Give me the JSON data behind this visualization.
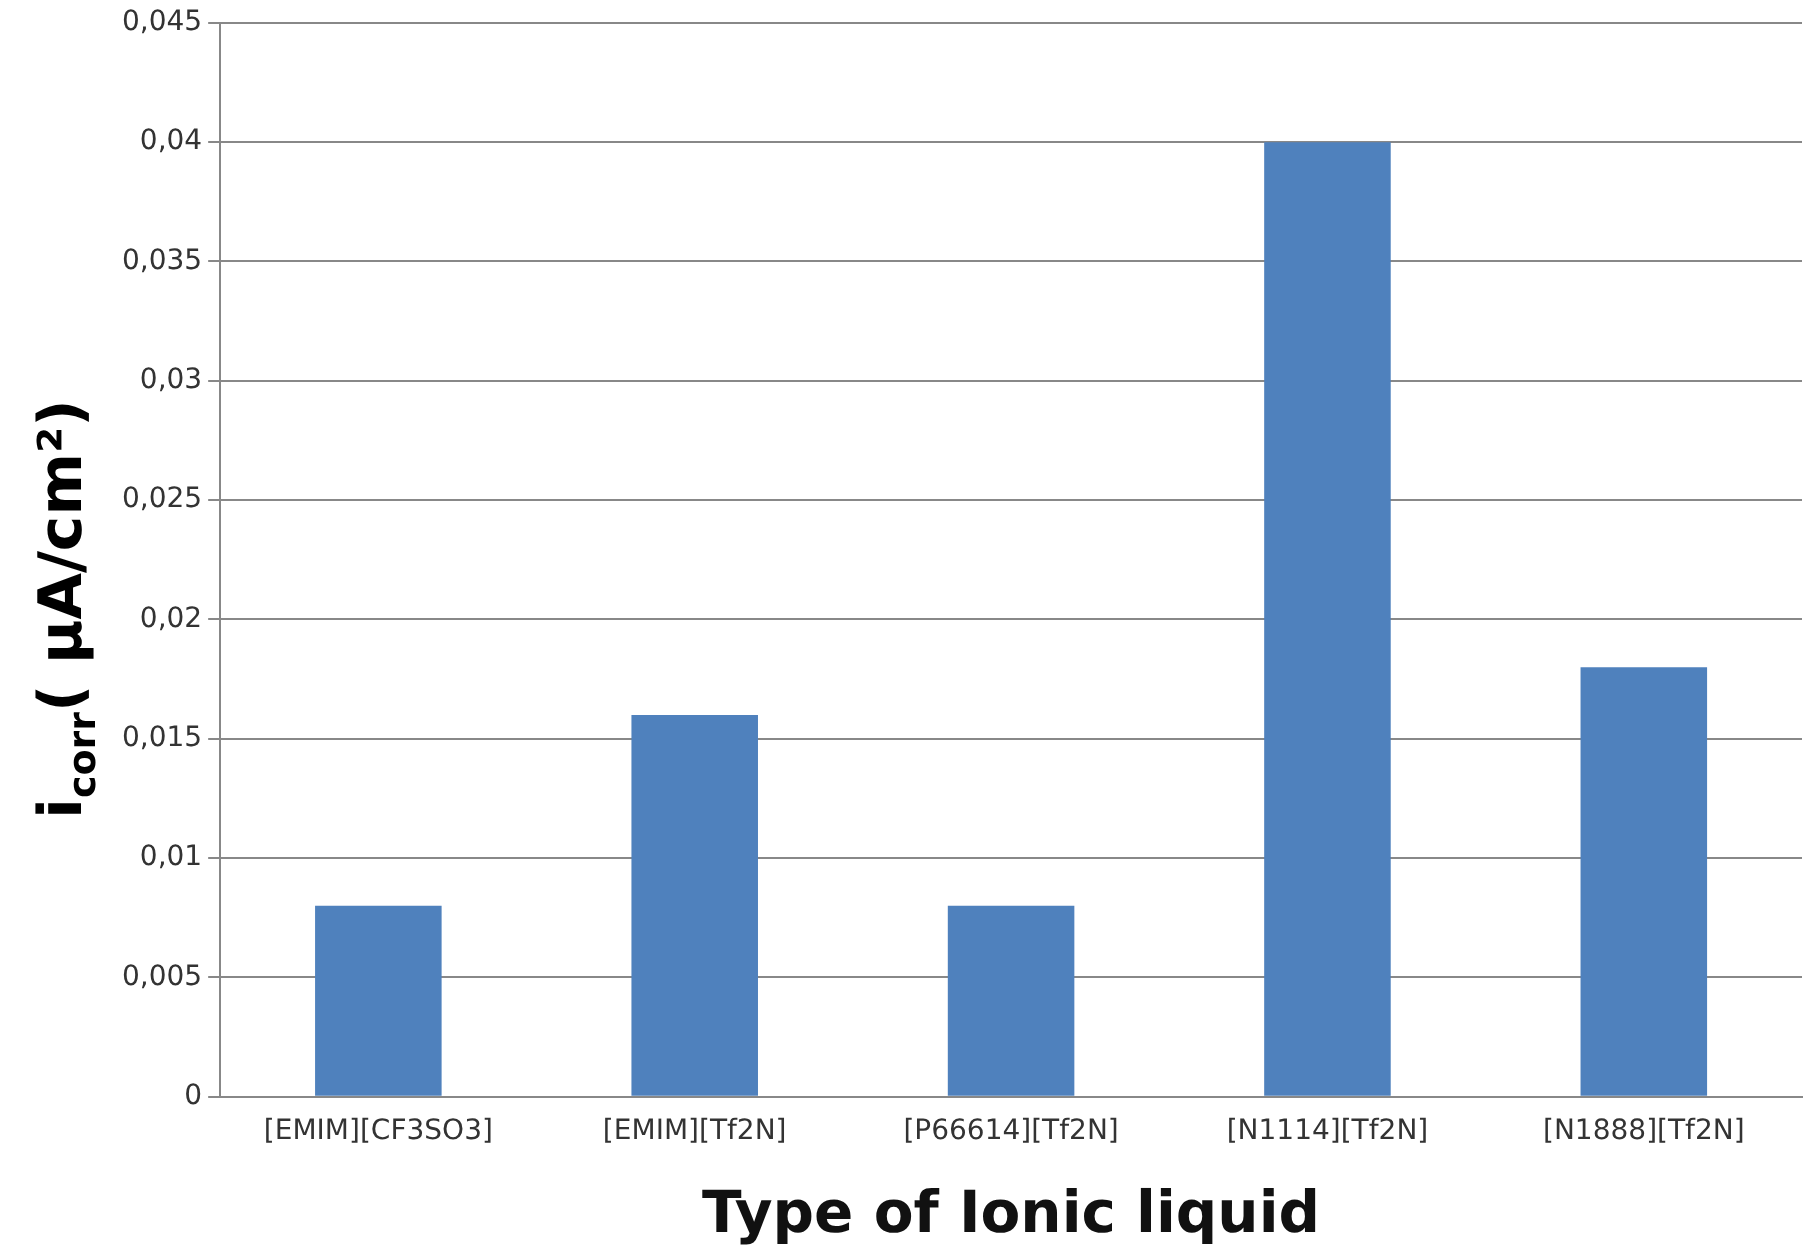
{
  "chart_data": {
    "type": "bar",
    "xlabel": "Type of Ionic liquid",
    "ylabel": "i$_{corr}$( μA/cm²)",
    "categories": [
      "[EMIM][CF3SO3]",
      "[EMIM][Tf2N]",
      "[P66614][Tf2N]",
      "[N1114][Tf2N]",
      "[N1888][Tf2N]"
    ],
    "values": [
      0.008,
      0.016,
      0.008,
      0.04,
      0.018
    ],
    "color": "#4f81bd",
    "ylim": [
      0,
      0.045
    ],
    "yticks": [
      {
        "value": 0,
        "label": "0"
      },
      {
        "value": 0.005,
        "label": "0,005"
      },
      {
        "value": 0.01,
        "label": "0,01"
      },
      {
        "value": 0.015,
        "label": "0,015"
      },
      {
        "value": 0.02,
        "label": "0,02"
      },
      {
        "value": 0.025,
        "label": "0,025"
      },
      {
        "value": 0.03,
        "label": "0,03"
      },
      {
        "value": 0.035,
        "label": "0,035"
      },
      {
        "value": 0.04,
        "label": "0,04"
      },
      {
        "value": 0.045,
        "label": "0,045"
      }
    ],
    "grid": "y"
  }
}
